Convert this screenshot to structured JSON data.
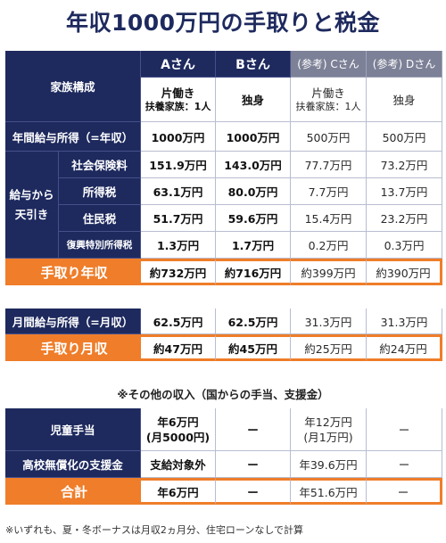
{
  "title": "年収1000万円の手取りと税金",
  "headers": {
    "a": "Aさん",
    "b": "Bさん",
    "c": "(参考) Cさん",
    "d": "(参考) Dさん"
  },
  "family": {
    "label": "家族構成",
    "a_main": "片働き",
    "a_sub": "扶養家族：1人",
    "b": "独身",
    "c_main": "片働き",
    "c_sub": "扶養家族：1人",
    "d": "独身"
  },
  "annual_income": {
    "label": "年間給与所得（=年収）",
    "a": "1000万円",
    "b": "1000万円",
    "c": "500万円",
    "d": "500万円"
  },
  "deductions": {
    "group_label": "給与から天引き",
    "group_label_line1": "給与から",
    "group_label_line2": "天引き",
    "rows": [
      {
        "label": "社会保険料",
        "a": "151.9万円",
        "b": "143.0万円",
        "c": "77.7万円",
        "d": "73.2万円"
      },
      {
        "label": "所得税",
        "a": "63.1万円",
        "b": "80.0万円",
        "c": "7.7万円",
        "d": "13.7万円"
      },
      {
        "label": "住民税",
        "a": "51.7万円",
        "b": "59.6万円",
        "c": "15.4万円",
        "d": "23.2万円"
      },
      {
        "label": "復興特別所得税",
        "a": "1.3万円",
        "b": "1.7万円",
        "c": "0.2万円",
        "d": "0.3万円"
      }
    ]
  },
  "take_home_annual": {
    "label": "手取り年収",
    "a": "約732万円",
    "b": "約716万円",
    "c": "約399万円",
    "d": "約390万円"
  },
  "monthly_income": {
    "label": "月間給与所得（=月収）",
    "a": "62.5万円",
    "b": "62.5万円",
    "c": "31.3万円",
    "d": "31.3万円"
  },
  "take_home_monthly": {
    "label": "手取り月収",
    "a": "約47万円",
    "b": "約45万円",
    "c": "約25万円",
    "d": "約24万円"
  },
  "other_income_title": "※その他の収入（国からの手当、支援金）",
  "other_income": {
    "child": {
      "label": "児童手当",
      "a_main": "年6万円",
      "a_sub": "(月5000円)",
      "b": "ー",
      "c_main": "年12万円",
      "c_sub": "(月1万円)",
      "d": "ー"
    },
    "tuition": {
      "label": "高校無償化の支援金",
      "a": "支給対象外",
      "b": "ー",
      "c": "年39.6万円",
      "d": "ー"
    },
    "total": {
      "label": "合計",
      "a": "年6万円",
      "b": "ー",
      "c": "年51.6万円",
      "d": "ー"
    }
  },
  "footnote": "※いずれも、夏・冬ボーナスは月収2ヵ月分、住宅ローンなしで計算",
  "colors": {
    "navy": "#1e2a5e",
    "orange": "#ef7d29",
    "gray": "#7d8197"
  }
}
